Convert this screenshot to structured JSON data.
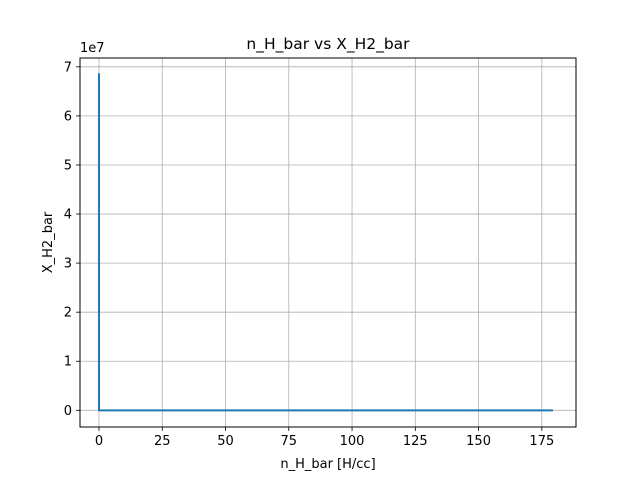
{
  "chart_data": {
    "type": "line",
    "title": "n_H_bar vs X_H2_bar",
    "xlabel": "n_H_bar [H/cc]",
    "ylabel": "X_H2_bar",
    "y_offset_label": "1e7",
    "y_scale": 10000000,
    "xlim": [
      -7.5,
      188.5
    ],
    "ylim": [
      -3400000,
      71800000
    ],
    "xticks": [
      0,
      25,
      50,
      75,
      100,
      125,
      150,
      175
    ],
    "xtick_labels": [
      "0",
      "25",
      "50",
      "75",
      "100",
      "125",
      "150",
      "175"
    ],
    "yticks": [
      0,
      10000000,
      20000000,
      30000000,
      40000000,
      50000000,
      60000000,
      70000000
    ],
    "ytick_labels": [
      "0",
      "1",
      "2",
      "3",
      "4",
      "5",
      "6",
      "7"
    ],
    "grid": true,
    "series": [
      {
        "color": "#1f77b4",
        "x": [
          0,
          0,
          0.02,
          179
        ],
        "y": [
          68500000,
          1000000,
          0,
          0
        ]
      }
    ]
  },
  "colors": {
    "line": "#1f77b4",
    "grid": "#b0b0b0",
    "axes": "#000000"
  }
}
